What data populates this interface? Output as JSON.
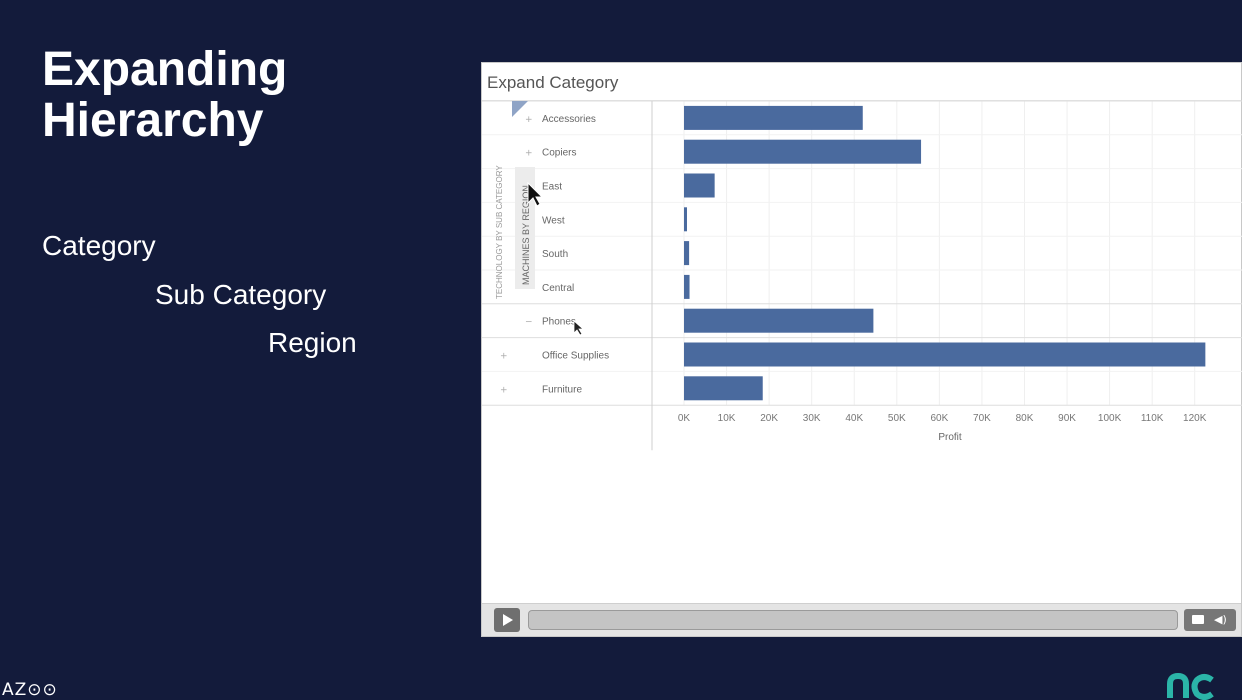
{
  "slide": {
    "title_line1": "Expanding",
    "title_line2": "Hierarchy",
    "hierarchy": [
      "Category",
      "Sub Category",
      "Region"
    ]
  },
  "video": {
    "title": "Expand Category",
    "controls": {
      "play_icon": "play-icon",
      "captions_icon": "captions-icon",
      "volume_icon": "volume-icon"
    }
  },
  "chart_data": {
    "type": "bar",
    "orientation": "horizontal",
    "xlabel": "Profit",
    "xlim": [
      0,
      125000
    ],
    "xticks": [
      "0K",
      "10K",
      "20K",
      "30K",
      "40K",
      "50K",
      "60K",
      "70K",
      "80K",
      "90K",
      "100K",
      "110K",
      "120K"
    ],
    "row_header_outer": "TECHNOLOGY BY SUB CATEGORY",
    "row_header_inner": "MACHINES BY REGION",
    "rows": [
      {
        "label": "Accessories",
        "value": 42000
      },
      {
        "label": "Copiers",
        "value": 55700
      },
      {
        "label": "East",
        "value": 7200
      },
      {
        "label": "West",
        "value": 600
      },
      {
        "label": "South",
        "value": 1200
      },
      {
        "label": "Central",
        "value": 1300
      },
      {
        "label": "Phones",
        "value": 44500
      },
      {
        "label": "Office Supplies",
        "value": 122500
      },
      {
        "label": "Furniture",
        "value": 18500
      }
    ],
    "bar_color": "#4a6a9e"
  },
  "logos": {
    "left_text": "AZ⊙⊙",
    "right_icon": "brand-logo-icon"
  }
}
